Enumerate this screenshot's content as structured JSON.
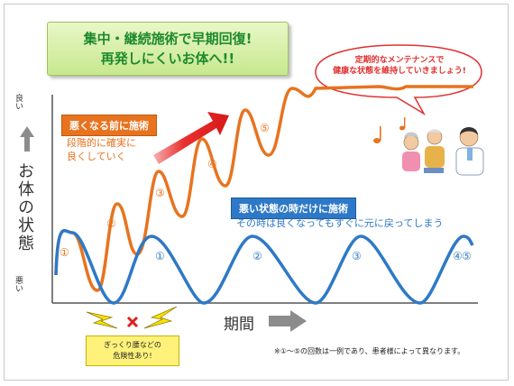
{
  "title": {
    "line1": "集中・継続施術で早期回復!",
    "line2": "再発しにくいお体へ!!"
  },
  "y_axis": {
    "title": "お体の状態",
    "top_label": "良い",
    "bottom_label": "悪い"
  },
  "x_axis": {
    "title": "期間"
  },
  "orange_series": {
    "tag": "悪くなる前に施術",
    "desc_line1": "段階的に確実に",
    "desc_line2": "良くしていく",
    "color": "#e8731f",
    "markers": [
      "①",
      "②",
      "③",
      "④",
      "⑤"
    ]
  },
  "blue_series": {
    "tag": "悪い状態の時だけに施術",
    "desc": "その時は良くなってもすぐに元に戻ってしまう",
    "color": "#2e79c7",
    "markers": [
      "①",
      "②",
      "③",
      "④",
      "⑤"
    ]
  },
  "bubble": {
    "line1": "定期的なメンテナンスで",
    "line2": "健康な状態を維持していきましょう!"
  },
  "warning": {
    "line1": "ぎっくり腰などの",
    "line2": "危険性あり!"
  },
  "footnote": "※①～⑤の回数は一例であり、患者様によって異なります。",
  "icons": [
    "up-arrow-icon",
    "right-arrow-icon",
    "lightning-icon",
    "x-mark-icon",
    "music-note-icon",
    "elderly-couple-illustration",
    "doctor-illustration"
  ]
}
